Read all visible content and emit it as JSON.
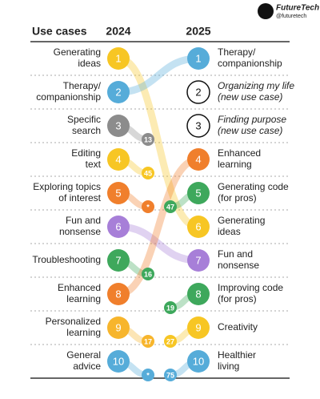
{
  "brand": {
    "name": "FutureTech",
    "handle": "@futuretech"
  },
  "chart_data": {
    "type": "bump",
    "header": "Use cases",
    "years": [
      "2024",
      "2025"
    ],
    "left": [
      {
        "label": [
          "Generating",
          "ideas"
        ],
        "rank": 1,
        "color": "#f7c624",
        "rank_2025": 6
      },
      {
        "label": [
          "Therapy/",
          "companionship"
        ],
        "rank": 2,
        "color": "#56acd9",
        "rank_2025": 1
      },
      {
        "label": [
          "Specific",
          "search"
        ],
        "rank": 3,
        "color": "#8c8c8c",
        "rank_2025": 13
      },
      {
        "label": [
          "Editing",
          "text"
        ],
        "rank": 4,
        "color": "#f7c624",
        "rank_2025": 45
      },
      {
        "label": [
          "Exploring topics",
          "of interest"
        ],
        "rank": 5,
        "color": "#f07f2c",
        "rank_2025": "*"
      },
      {
        "label": [
          "Fun and",
          "nonsense"
        ],
        "rank": 6,
        "color": "#a77fd8",
        "rank_2025": 7
      },
      {
        "label": [
          "Troubleshooting"
        ],
        "rank": 7,
        "color": "#3ea85c",
        "rank_2025": 16
      },
      {
        "label": [
          "Enhanced",
          "learning"
        ],
        "rank": 8,
        "color": "#f07f2c",
        "rank_2025": 4
      },
      {
        "label": [
          "Personalized",
          "learning"
        ],
        "rank": 9,
        "color": "#f7b52c",
        "rank_2025": 17
      },
      {
        "label": [
          "General",
          "advice"
        ],
        "rank": 10,
        "color": "#56acd9",
        "rank_2025": "*"
      }
    ],
    "right": [
      {
        "label": [
          "Therapy/",
          "companionship"
        ],
        "rank": 1,
        "color": "#56acd9"
      },
      {
        "label": [
          "Organizing my life",
          "(new use case)"
        ],
        "rank": 2,
        "color": "#ffffff",
        "new": true
      },
      {
        "label": [
          "Finding purpose",
          "(new use case)"
        ],
        "rank": 3,
        "color": "#ffffff",
        "new": true
      },
      {
        "label": [
          "Enhanced",
          "learning"
        ],
        "rank": 4,
        "color": "#f07f2c"
      },
      {
        "label": [
          "Generating code",
          "(for pros)"
        ],
        "rank": 5,
        "color": "#3ea85c",
        "rank_2024": 47
      },
      {
        "label": [
          "Generating",
          "ideas"
        ],
        "rank": 6,
        "color": "#f7c624"
      },
      {
        "label": [
          "Fun and",
          "nonsense"
        ],
        "rank": 7,
        "color": "#a77fd8"
      },
      {
        "label": [
          "Improving code",
          "(for pros)"
        ],
        "rank": 8,
        "color": "#3ea85c",
        "rank_2024": 19
      },
      {
        "label": [
          "Creativity"
        ],
        "rank": 9,
        "color": "#f7c624",
        "rank_2024": 27
      },
      {
        "label": [
          "Healthier",
          "living"
        ],
        "rank": 10,
        "color": "#56acd9",
        "rank_2024": 75
      }
    ]
  }
}
